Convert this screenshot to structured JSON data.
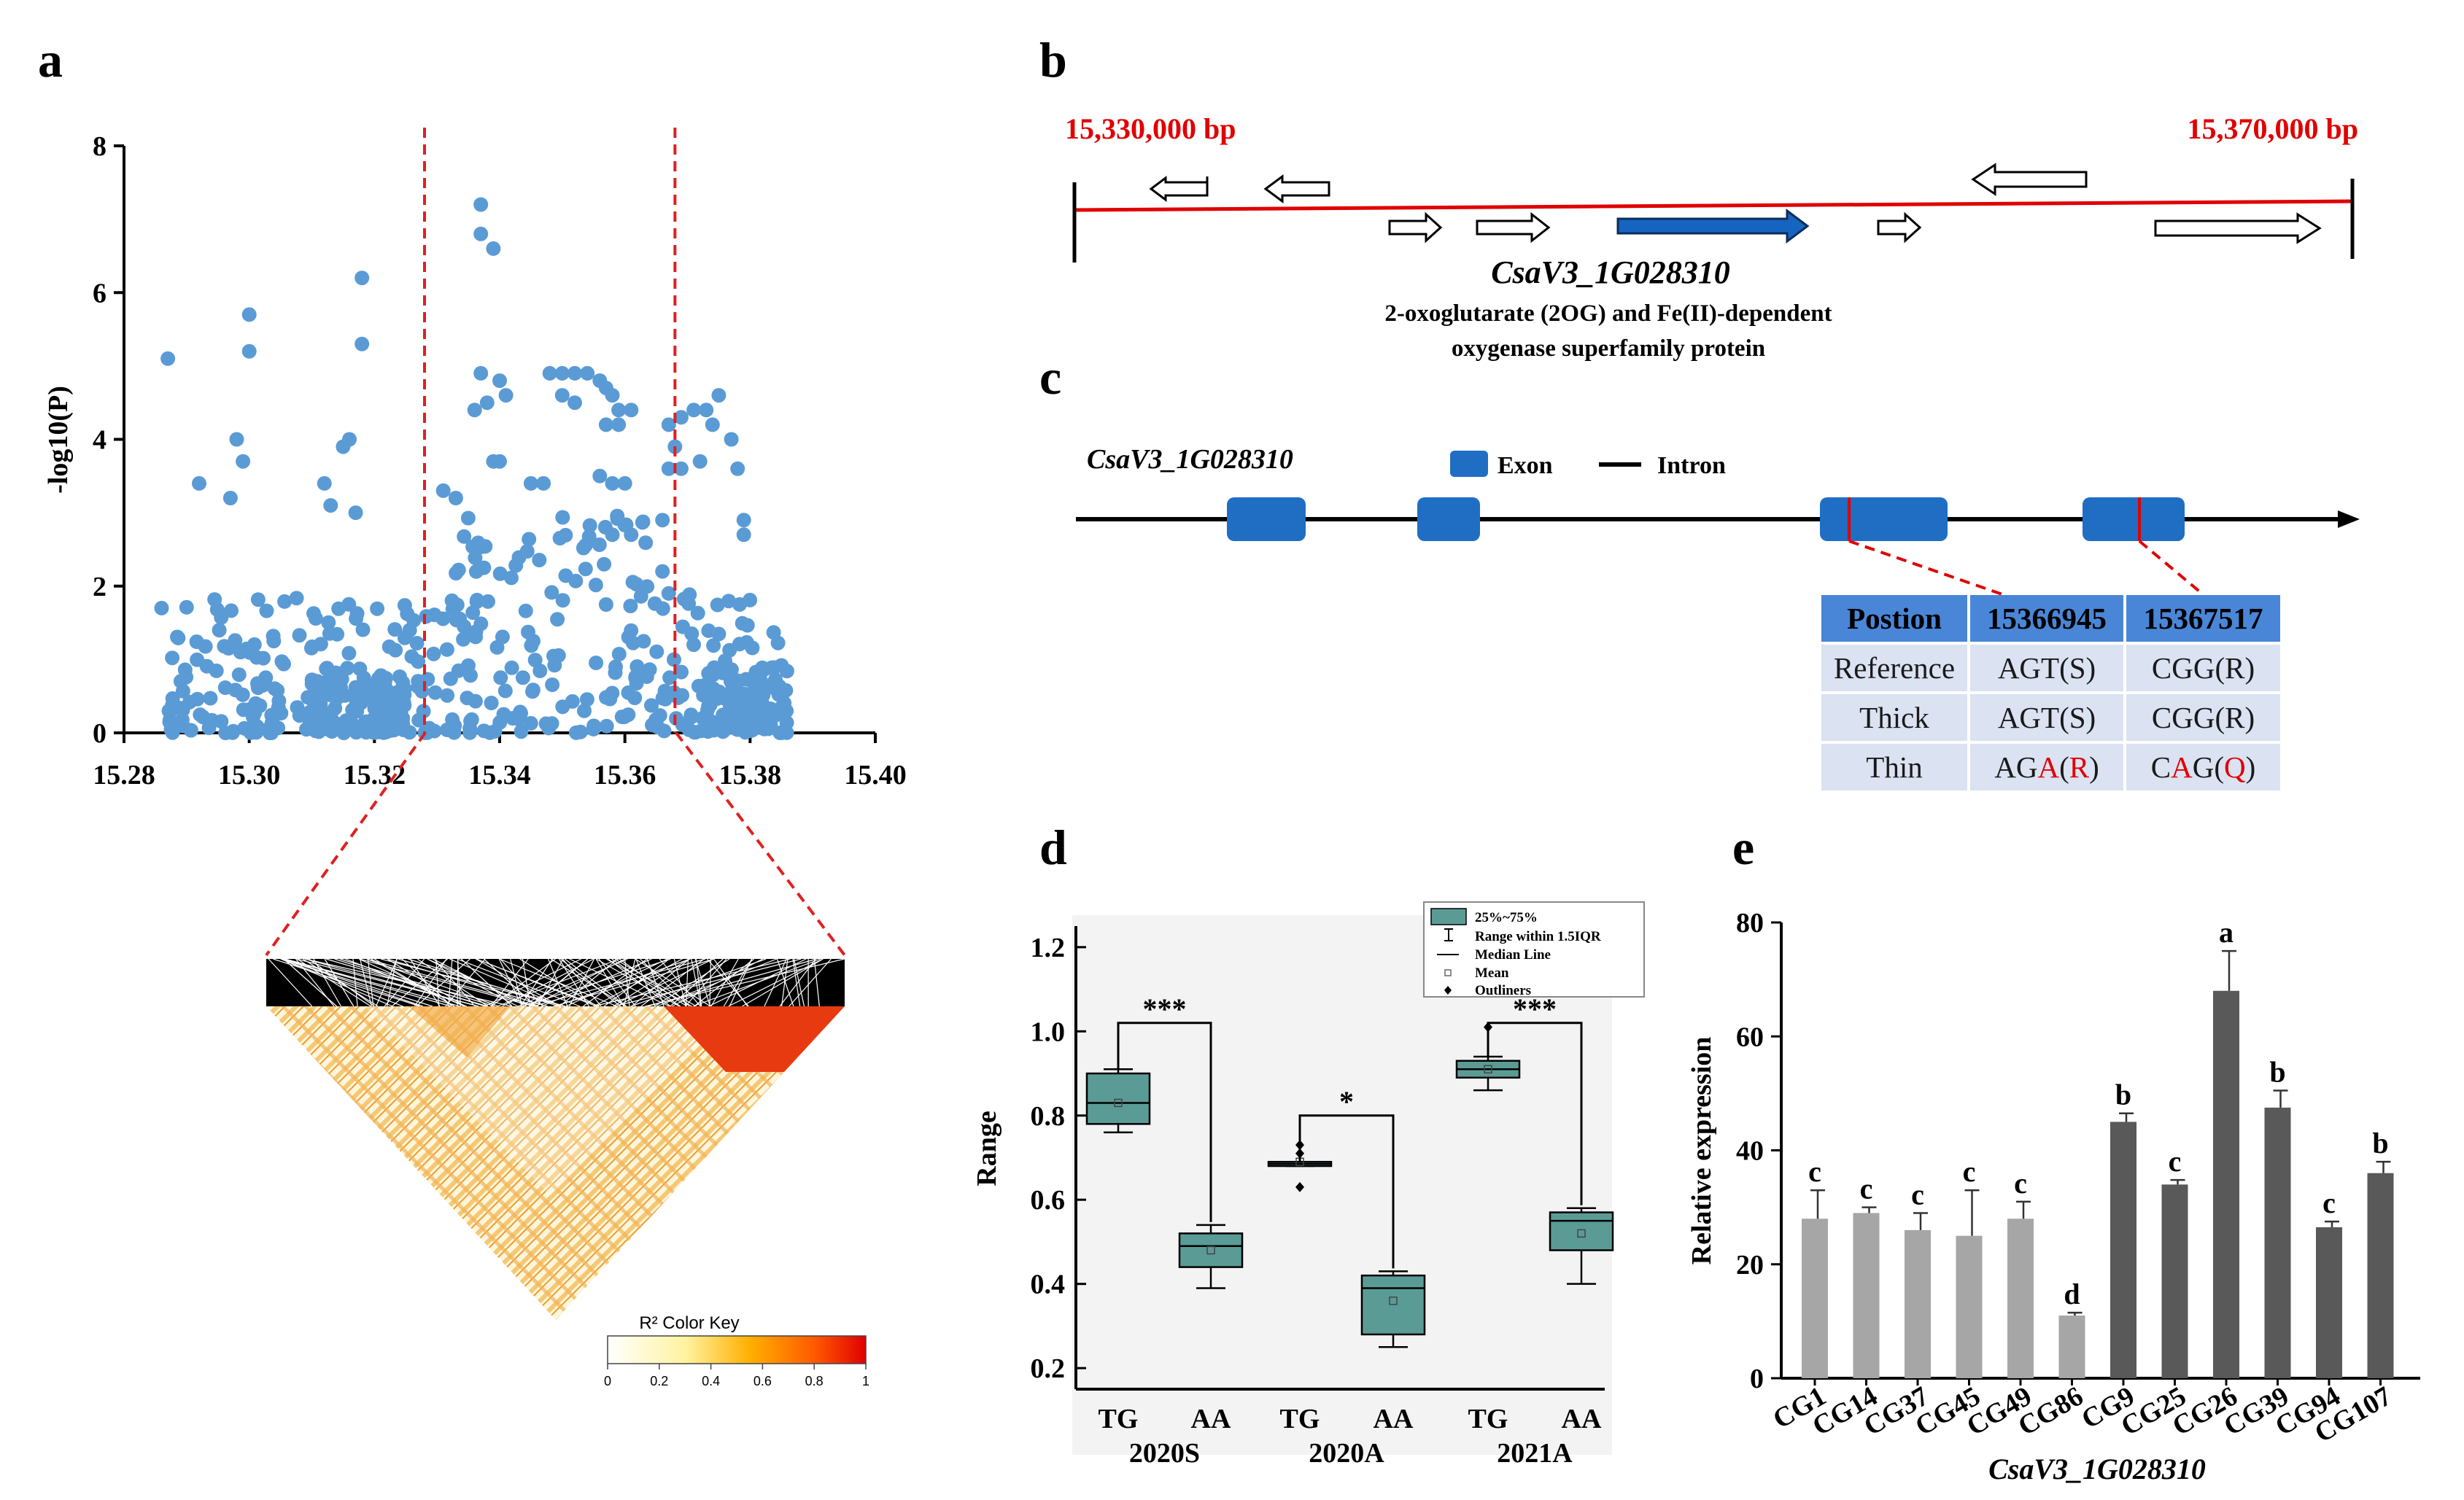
{
  "panels": {
    "a": "a",
    "b": "b",
    "c": "c",
    "d": "d",
    "e": "e"
  },
  "panel_a": {
    "ylabel": "-log10(P)",
    "y_ticks": [
      "0",
      "2",
      "4",
      "6",
      "8"
    ],
    "x_ticks": [
      "15.28",
      "15.30",
      "15.32",
      "15.34",
      "15.36",
      "15.38",
      "15.40"
    ],
    "xlim": [
      15.28,
      15.4
    ],
    "ylim": [
      0,
      8
    ],
    "threshold_lines_x": [
      15.328,
      15.368
    ],
    "point_color": "#5b9bd5",
    "ld_color_key": {
      "title": "R² Color Key",
      "ticks": [
        "0",
        "0.2",
        "0.4",
        "0.6",
        "0.8",
        "1"
      ]
    }
  },
  "panel_b": {
    "start_label": "15,330,000 bp",
    "end_label": "15,370,000 bp",
    "gene_name": "CsaV3_1G028310",
    "gene_desc_line1": "2-oxoglutarate (2OG) and Fe(II)-dependent",
    "gene_desc_line2": "oxygenase superfamily protein"
  },
  "panel_c": {
    "gene_name": "CsaV3_1G028310",
    "legend_exon": "Exon",
    "legend_intron": "Intron",
    "table_header": [
      "Postion",
      "15366945",
      "15367517"
    ],
    "rows": [
      {
        "label": "Reference",
        "c1": "AGT(S)",
        "c2": "CGG(R)"
      },
      {
        "label": "Thick",
        "c1": "AGT(S)",
        "c2": "CGG(R)"
      },
      {
        "label": "Thin",
        "c1a": "AG",
        "c1b": "A",
        "c1c": "(",
        "c1d": "R",
        "c1e": ")",
        "c2a": "C",
        "c2b": "A",
        "c2c": "G(",
        "c2d": "Q",
        "c2e": ")"
      }
    ]
  },
  "panel_d": {
    "ylabel": "Range",
    "y_ticks": [
      "0.2",
      "0.4",
      "0.6",
      "0.8",
      "1.0",
      "1.2"
    ],
    "legend": [
      "25%~75%",
      "Range within 1.5IQR",
      "Median Line",
      "Mean",
      "Outliners"
    ],
    "box_color": "#5b9b95",
    "chart_data": {
      "type": "box",
      "ylim": [
        0.15,
        1.25
      ],
      "ylabel": "Range",
      "groups": [
        {
          "name": "2020S",
          "significance": "***",
          "boxes": [
            {
              "label": "TG",
              "whisker_low": 0.76,
              "q1": 0.78,
              "median": 0.83,
              "q3": 0.9,
              "whisker_high": 0.91,
              "mean": 0.83,
              "outliers": []
            },
            {
              "label": "AA",
              "whisker_low": 0.39,
              "q1": 0.44,
              "median": 0.49,
              "q3": 0.52,
              "whisker_high": 0.54,
              "mean": 0.48,
              "outliers": []
            }
          ]
        },
        {
          "name": "2020A",
          "significance": "*",
          "boxes": [
            {
              "label": "TG",
              "whisker_low": 0.68,
              "q1": 0.68,
              "median": 0.685,
              "q3": 0.69,
              "whisker_high": 0.69,
              "mean": 0.69,
              "outliers": [
                0.63,
                0.71,
                0.73
              ]
            },
            {
              "label": "AA",
              "whisker_low": 0.25,
              "q1": 0.28,
              "median": 0.39,
              "q3": 0.42,
              "whisker_high": 0.43,
              "mean": 0.36,
              "outliers": []
            }
          ]
        },
        {
          "name": "2021A",
          "significance": "***",
          "boxes": [
            {
              "label": "TG",
              "whisker_low": 0.86,
              "q1": 0.89,
              "median": 0.91,
              "q3": 0.93,
              "whisker_high": 0.94,
              "mean": 0.91,
              "outliers": [
                1.01
              ]
            },
            {
              "label": "AA",
              "whisker_low": 0.4,
              "q1": 0.48,
              "median": 0.55,
              "q3": 0.57,
              "whisker_high": 0.58,
              "mean": 0.52,
              "outliers": []
            }
          ]
        }
      ]
    }
  },
  "panel_e": {
    "ylabel": "Relative expression",
    "xlabel": "CsaV3_1G028310",
    "y_ticks": [
      "0",
      "20",
      "40",
      "60",
      "80"
    ],
    "chart_data": {
      "type": "bar",
      "ylim": [
        0,
        80
      ],
      "title": "",
      "xlabel": "CsaV3_1G028310",
      "ylabel": "Relative expression",
      "categories": [
        "CG1",
        "CG14",
        "CG37",
        "CG45",
        "CG49",
        "CG86",
        "CG9",
        "CG25",
        "CG26",
        "CG39",
        "CG94",
        "CG107"
      ],
      "values": [
        28,
        29,
        26,
        25,
        28,
        11,
        45,
        34,
        68,
        47.5,
        26.5,
        36
      ],
      "errors": [
        5,
        1,
        3,
        8,
        3,
        0.5,
        1.5,
        0.8,
        7,
        3,
        1,
        2
      ],
      "letters": [
        "c",
        "c",
        "c",
        "c",
        "c",
        "d",
        "b",
        "c",
        "a",
        "b",
        "c",
        "b"
      ],
      "colors": [
        "#a6a6a6",
        "#a6a6a6",
        "#a6a6a6",
        "#a6a6a6",
        "#a6a6a6",
        "#a6a6a6",
        "#595959",
        "#595959",
        "#595959",
        "#595959",
        "#595959",
        "#595959"
      ]
    }
  }
}
